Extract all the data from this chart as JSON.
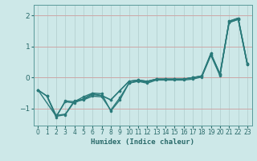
{
  "title": "",
  "xlabel": "Humidex (Indice chaleur)",
  "ylabel": "",
  "bg_color": "#cde8e8",
  "grid_color": "#b8d4d4",
  "line_color": "#2a7a7a",
  "xlim": [
    -0.5,
    23.5
  ],
  "ylim": [
    -1.55,
    2.35
  ],
  "yticks": [
    -1,
    0,
    1,
    2
  ],
  "xticks": [
    0,
    1,
    2,
    3,
    4,
    5,
    6,
    7,
    8,
    9,
    10,
    11,
    12,
    13,
    14,
    15,
    16,
    17,
    18,
    19,
    20,
    21,
    22,
    23
  ],
  "series": [
    [
      0,
      -0.4
    ],
    [
      1,
      -0.6
    ],
    [
      2,
      -1.25
    ],
    [
      3,
      -1.2
    ],
    [
      4,
      -0.78
    ],
    [
      5,
      -0.72
    ],
    [
      6,
      -0.6
    ],
    [
      7,
      -0.62
    ],
    [
      8,
      -1.05
    ],
    [
      9,
      -0.65
    ],
    [
      10,
      -0.18
    ],
    [
      11,
      -0.12
    ],
    [
      12,
      -0.18
    ],
    [
      13,
      -0.08
    ],
    [
      14,
      -0.08
    ],
    [
      15,
      -0.08
    ],
    [
      16,
      -0.08
    ],
    [
      17,
      -0.05
    ],
    [
      18,
      0.02
    ],
    [
      19,
      0.72
    ],
    [
      20,
      0.06
    ],
    [
      21,
      1.78
    ],
    [
      22,
      1.88
    ],
    [
      23,
      0.42
    ]
  ],
  "series2": [
    [
      0,
      -0.4
    ],
    [
      2,
      -1.25
    ],
    [
      3,
      -0.78
    ],
    [
      4,
      -0.82
    ],
    [
      5,
      -0.68
    ],
    [
      6,
      -0.52
    ],
    [
      7,
      -0.58
    ],
    [
      8,
      -0.72
    ],
    [
      9,
      -0.42
    ],
    [
      10,
      -0.12
    ],
    [
      11,
      -0.08
    ],
    [
      12,
      -0.12
    ],
    [
      13,
      -0.05
    ],
    [
      14,
      -0.05
    ],
    [
      15,
      -0.05
    ],
    [
      16,
      -0.05
    ],
    [
      17,
      0.0
    ],
    [
      18,
      0.05
    ],
    [
      19,
      0.75
    ],
    [
      20,
      0.12
    ],
    [
      21,
      1.78
    ],
    [
      22,
      1.88
    ],
    [
      23,
      0.42
    ]
  ],
  "series3": [
    [
      0,
      -0.4
    ],
    [
      1,
      -0.6
    ],
    [
      2,
      -1.28
    ],
    [
      3,
      -0.75
    ],
    [
      4,
      -0.78
    ],
    [
      5,
      -0.62
    ],
    [
      6,
      -0.5
    ],
    [
      7,
      -0.52
    ],
    [
      8,
      -1.08
    ],
    [
      9,
      -0.72
    ],
    [
      10,
      -0.18
    ],
    [
      11,
      -0.1
    ],
    [
      12,
      -0.15
    ],
    [
      13,
      -0.05
    ],
    [
      14,
      -0.05
    ],
    [
      15,
      -0.05
    ],
    [
      16,
      -0.05
    ],
    [
      17,
      0.0
    ],
    [
      18,
      0.05
    ],
    [
      19,
      0.78
    ],
    [
      20,
      0.08
    ],
    [
      21,
      1.82
    ],
    [
      22,
      1.92
    ],
    [
      23,
      0.45
    ]
  ],
  "series4": [
    [
      1,
      -0.6
    ],
    [
      2,
      -1.22
    ],
    [
      3,
      -1.18
    ],
    [
      4,
      -0.75
    ],
    [
      5,
      -0.7
    ],
    [
      6,
      -0.55
    ],
    [
      7,
      -0.58
    ],
    [
      8,
      -0.72
    ],
    [
      9,
      -0.42
    ],
    [
      10,
      -0.12
    ],
    [
      11,
      -0.08
    ],
    [
      12,
      -0.12
    ],
    [
      13,
      -0.05
    ],
    [
      14,
      -0.05
    ],
    [
      15,
      -0.05
    ],
    [
      16,
      -0.05
    ],
    [
      17,
      0.0
    ],
    [
      18,
      0.05
    ],
    [
      19,
      0.78
    ],
    [
      20,
      0.12
    ],
    [
      21,
      1.82
    ],
    [
      22,
      1.92
    ],
    [
      23,
      0.45
    ]
  ]
}
